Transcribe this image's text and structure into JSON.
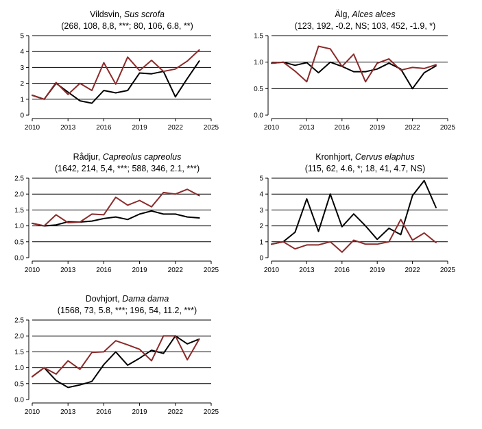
{
  "colors": {
    "series_black": "#000000",
    "series_red": "#8b2a2a",
    "grid": "#000000"
  },
  "chart_data": [
    {
      "type": "line",
      "title_plain": "Vildsvin, ",
      "title_italic": "Sus scrofa",
      "subtitle": "(268, 108, 8,8, ***; 80, 106, 6.8, **)",
      "x": [
        2010,
        2011,
        2012,
        2013,
        2014,
        2015,
        2016,
        2017,
        2018,
        2019,
        2020,
        2021,
        2022,
        2023,
        2024
      ],
      "xticks": [
        "2010",
        "2013",
        "2016",
        "2019",
        "2022",
        "2025"
      ],
      "yticks": [
        "0",
        "1",
        "2",
        "3",
        "4",
        "5"
      ],
      "ylim": [
        0,
        5
      ],
      "xlim": [
        2010,
        2025
      ],
      "series": [
        {
          "name": "black",
          "color": "#000000",
          "values": [
            1.25,
            1.0,
            2.0,
            1.45,
            0.9,
            0.75,
            1.55,
            1.4,
            1.55,
            2.65,
            2.6,
            2.75,
            1.15,
            2.3,
            3.4
          ]
        },
        {
          "name": "red",
          "color": "#8b2a2a",
          "values": [
            1.25,
            1.0,
            2.05,
            1.3,
            2.0,
            1.55,
            3.3,
            1.95,
            3.65,
            2.8,
            3.45,
            2.75,
            2.9,
            3.4,
            4.1
          ]
        }
      ]
    },
    {
      "type": "line",
      "title_plain": "Älg, ",
      "title_italic": "Alces alces",
      "subtitle": "(123, 192, -0.2, NS; 103, 452, -1.9, *)",
      "x": [
        2010,
        2011,
        2012,
        2013,
        2014,
        2015,
        2016,
        2017,
        2018,
        2019,
        2020,
        2021,
        2022,
        2023,
        2024
      ],
      "xticks": [
        "2010",
        "2013",
        "2016",
        "2019",
        "2022",
        "2025"
      ],
      "yticks": [
        "0.0",
        "0.5",
        "1.0",
        "1.5"
      ],
      "ylim": [
        0,
        1.5
      ],
      "xlim": [
        2010,
        2025
      ],
      "series": [
        {
          "name": "black",
          "color": "#000000",
          "values": [
            0.98,
            1.0,
            0.94,
            0.99,
            0.8,
            1.0,
            0.92,
            0.82,
            0.82,
            0.87,
            0.98,
            0.87,
            0.5,
            0.8,
            0.93
          ]
        },
        {
          "name": "red",
          "color": "#8b2a2a",
          "values": [
            0.98,
            1.0,
            0.83,
            0.63,
            1.3,
            1.25,
            0.92,
            1.15,
            0.63,
            0.98,
            1.06,
            0.85,
            0.9,
            0.88,
            0.95
          ]
        }
      ]
    },
    {
      "type": "line",
      "title_plain": "Rådjur, ",
      "title_italic": "Capreolus capreolus",
      "subtitle": "(1642, 214, 5,4, ***; 588, 346, 2.1, ***)",
      "x": [
        2010,
        2011,
        2012,
        2013,
        2014,
        2015,
        2016,
        2017,
        2018,
        2019,
        2020,
        2021,
        2022,
        2023,
        2024
      ],
      "xticks": [
        "2010",
        "2013",
        "2016",
        "2019",
        "2022",
        "2025"
      ],
      "yticks": [
        "0.0",
        "0.5",
        "1.0",
        "1.5",
        "2.0",
        "2.5"
      ],
      "ylim": [
        0,
        2.5
      ],
      "xlim": [
        2010,
        2025
      ],
      "series": [
        {
          "name": "black",
          "color": "#000000",
          "values": [
            1.08,
            1.0,
            1.03,
            1.13,
            1.12,
            1.15,
            1.23,
            1.28,
            1.2,
            1.37,
            1.47,
            1.37,
            1.37,
            1.28,
            1.25
          ]
        },
        {
          "name": "red",
          "color": "#8b2a2a",
          "values": [
            1.08,
            1.0,
            1.35,
            1.1,
            1.12,
            1.37,
            1.35,
            1.9,
            1.65,
            1.8,
            1.6,
            2.05,
            2.0,
            2.15,
            1.95
          ]
        }
      ]
    },
    {
      "type": "line",
      "title_plain": "Kronhjort, ",
      "title_italic": "Cervus elaphus",
      "subtitle": "(115, 62, 4.6, *; 18, 41, 4.7, NS)",
      "x": [
        2010,
        2011,
        2012,
        2013,
        2014,
        2015,
        2016,
        2017,
        2018,
        2019,
        2020,
        2021,
        2022,
        2023,
        2024
      ],
      "xticks": [
        "2010",
        "2013",
        "2016",
        "2019",
        "2022",
        "2025"
      ],
      "yticks": [
        "0",
        "1",
        "2",
        "3",
        "4",
        "5"
      ],
      "ylim": [
        0,
        5
      ],
      "xlim": [
        2010,
        2025
      ],
      "series": [
        {
          "name": "black",
          "color": "#000000",
          "values": [
            0.85,
            1.0,
            1.6,
            3.7,
            1.65,
            4.0,
            1.95,
            2.75,
            2.0,
            1.15,
            1.85,
            1.45,
            3.9,
            4.85,
            3.15
          ]
        },
        {
          "name": "red",
          "color": "#8b2a2a",
          "values": [
            0.85,
            1.0,
            0.55,
            0.8,
            0.8,
            1.0,
            0.35,
            1.1,
            0.85,
            0.85,
            1.0,
            2.4,
            1.1,
            1.55,
            0.95
          ]
        }
      ]
    },
    {
      "type": "line",
      "title_plain": "Dovhjort, ",
      "title_italic": "Dama dama",
      "subtitle": "(1568, 73, 5.8, ***; 196, 54, 11.2, ***)",
      "x": [
        2010,
        2011,
        2012,
        2013,
        2014,
        2015,
        2016,
        2017,
        2018,
        2019,
        2020,
        2021,
        2022,
        2023,
        2024
      ],
      "xticks": [
        "2010",
        "2013",
        "2016",
        "2019",
        "2022",
        "2025"
      ],
      "yticks": [
        "0.0",
        "0.5",
        "1.0",
        "1.5",
        "2.0",
        "2.5"
      ],
      "ylim": [
        0,
        2.5
      ],
      "xlim": [
        2010,
        2025
      ],
      "series": [
        {
          "name": "black",
          "color": "#000000",
          "values": [
            0.72,
            1.0,
            0.6,
            0.38,
            0.46,
            0.57,
            1.1,
            1.5,
            1.08,
            1.3,
            1.55,
            1.45,
            2.0,
            1.75,
            1.9
          ]
        },
        {
          "name": "red",
          "color": "#8b2a2a",
          "values": [
            0.72,
            1.0,
            0.8,
            1.22,
            0.95,
            1.48,
            1.5,
            1.85,
            1.72,
            1.58,
            1.22,
            2.0,
            2.0,
            1.25,
            1.9
          ]
        }
      ]
    }
  ]
}
